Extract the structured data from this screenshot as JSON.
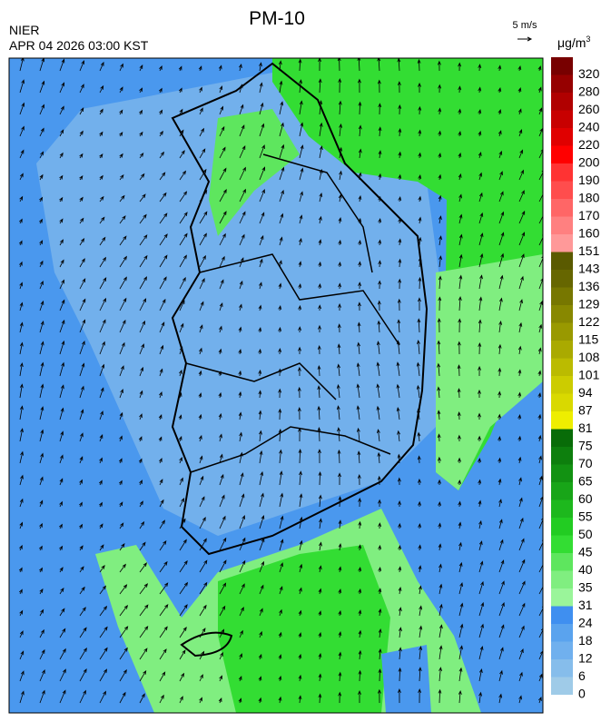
{
  "header": {
    "title": "PM-10",
    "agency": "NIER",
    "timestamp": "APR 04 2026 03:00 KST"
  },
  "wind_scale": {
    "label": "5 m/s"
  },
  "legend": {
    "unit": "μg/m",
    "unit_exponent": "3",
    "ticks": [
      0,
      6,
      12,
      18,
      24,
      31,
      35,
      40,
      45,
      50,
      55,
      60,
      65,
      70,
      75,
      81,
      87,
      94,
      101,
      108,
      115,
      122,
      129,
      136,
      143,
      151,
      160,
      170,
      180,
      190,
      200,
      220,
      240,
      260,
      280,
      320
    ],
    "colors": [
      "#9fcbe8",
      "#86bdeb",
      "#70b0ee",
      "#5aa3ee",
      "#3f8ff0",
      "#9af59a",
      "#80ee80",
      "#5ee65e",
      "#33dd33",
      "#22cc22",
      "#1db81d",
      "#18a518",
      "#129212",
      "#0d7f0d",
      "#086c08",
      "#eeee00",
      "#d9d900",
      "#cccc00",
      "#bbbb00",
      "#aaaa00",
      "#999900",
      "#888800",
      "#777700",
      "#666600",
      "#5a5a00",
      "#ff9999",
      "#ff8080",
      "#ff6666",
      "#ff4d4d",
      "#ff3333",
      "#ff0000",
      "#e00000",
      "#c80000",
      "#b00000",
      "#960000",
      "#780000"
    ]
  }
}
